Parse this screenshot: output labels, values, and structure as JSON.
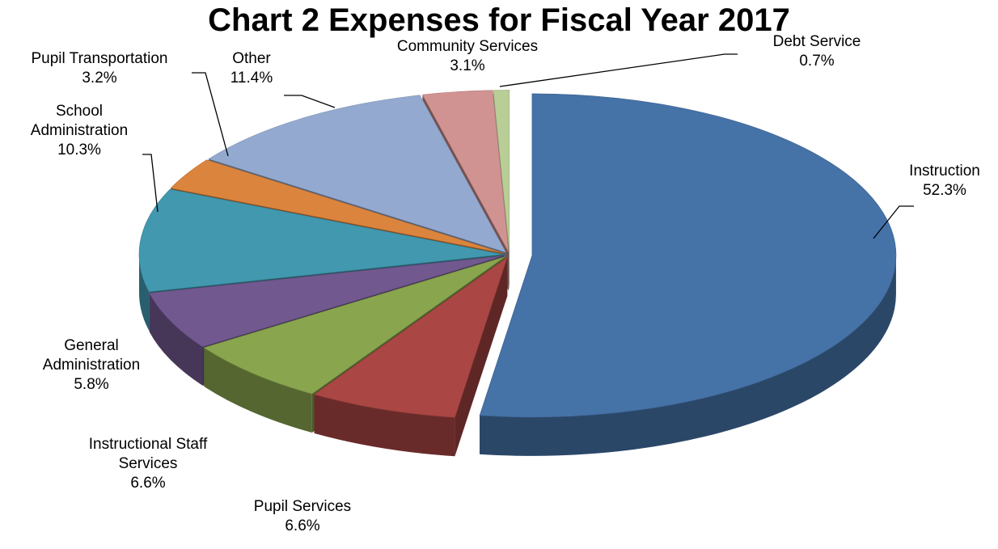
{
  "chart_data": {
    "type": "pie",
    "title": "Chart 2 Expenses for Fiscal Year 2017",
    "unit": "%",
    "slices": [
      {
        "label": "Instruction",
        "value": 52.3,
        "display": "52.3%",
        "color": "#4572A7",
        "exploded": true
      },
      {
        "label": "Pupil Services",
        "value": 6.6,
        "display": "6.6%",
        "color": "#AA4643"
      },
      {
        "label": "Instructional Staff Services",
        "value": 6.6,
        "display": "6.6%",
        "color": "#89A54E"
      },
      {
        "label": "General Administration",
        "value": 5.8,
        "display": "5.8%",
        "color": "#71588F"
      },
      {
        "label": "School Administration",
        "value": 10.3,
        "display": "10.3%",
        "color": "#4198AF"
      },
      {
        "label": "Pupil Transportation",
        "value": 3.2,
        "display": "3.2%",
        "color": "#DB843D"
      },
      {
        "label": "Other",
        "value": 11.4,
        "display": "11.4%",
        "color": "#93A9CF"
      },
      {
        "label": "Community Services",
        "value": 3.1,
        "display": "3.1%",
        "color": "#D19392"
      },
      {
        "label": "Debt Service",
        "value": 0.7,
        "display": "0.7%",
        "color": "#B9CD96"
      }
    ]
  }
}
